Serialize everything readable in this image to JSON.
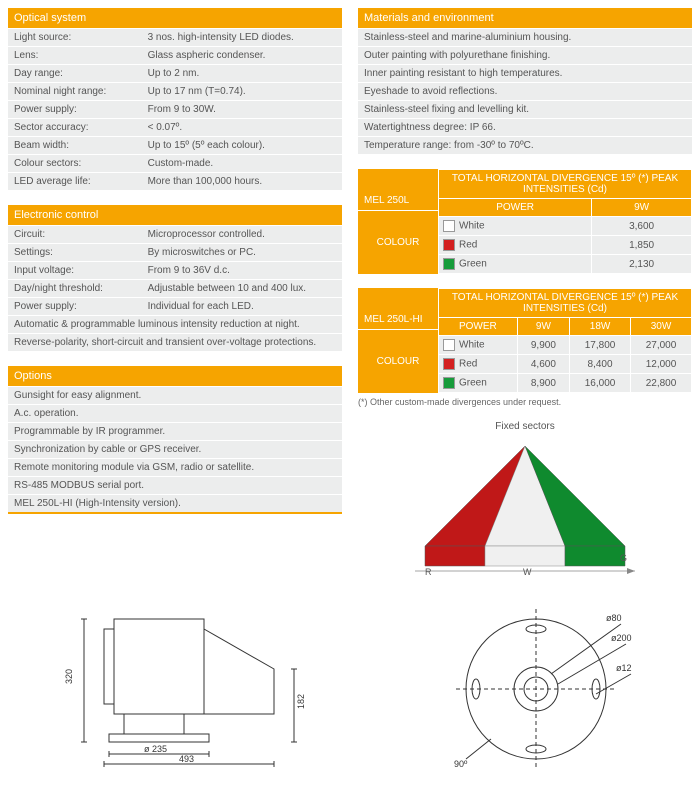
{
  "colors": {
    "accent": "#f6a400",
    "rowBg": "#eceded",
    "text": "#555",
    "white_swatch": "#ffffff",
    "red_swatch": "#d32020",
    "green_swatch": "#169b3a",
    "sector_red": "#c01818",
    "sector_white": "#f0f0f0",
    "sector_green": "#0f8a2e"
  },
  "left": {
    "optical": {
      "header": "Optical system",
      "rows": [
        {
          "label": "Light source:",
          "value": "3 nos. high-intensity LED diodes."
        },
        {
          "label": "Lens:",
          "value": "Glass aspheric condenser."
        },
        {
          "label": "Day range:",
          "value": "Up to 2 nm."
        },
        {
          "label": "Nominal night range:",
          "value": "Up to 17 nm (T=0.74)."
        },
        {
          "label": "Power supply:",
          "value": "From 9 to 30W."
        },
        {
          "label": "Sector accuracy:",
          "value": "< 0.07º."
        },
        {
          "label": "Beam width:",
          "value": "Up to 15º (5º each colour)."
        },
        {
          "label": "Colour sectors:",
          "value": "Custom-made."
        },
        {
          "label": "LED average life:",
          "value": "More than 100,000 hours."
        }
      ]
    },
    "electronic": {
      "header": "Electronic control",
      "rows": [
        {
          "label": "Circuit:",
          "value": "Microprocessor controlled."
        },
        {
          "label": "Settings:",
          "value": "By microswitches or PC."
        },
        {
          "label": "Input voltage:",
          "value": "From 9 to 36V d.c."
        },
        {
          "label": "Day/night threshold:",
          "value": "Adjustable between 10 and 400 lux."
        },
        {
          "label": "Power supply:",
          "value": "Individual for each LED."
        }
      ],
      "full": [
        "Automatic & programmable luminous intensity reduction at night.",
        "Reverse-polarity, short-circuit and transient over-voltage protections."
      ]
    },
    "options": {
      "header": "Options",
      "full": [
        "Gunsight for easy alignment.",
        "A.c. operation.",
        "Programmable by IR programmer.",
        "Synchronization by cable or GPS receiver.",
        "Remote monitoring module via GSM, radio or satellite.",
        "RS-485 MODBUS serial port.",
        "MEL 250L-HI (High-Intensity version)."
      ]
    }
  },
  "right": {
    "materials": {
      "header": "Materials and environment",
      "full": [
        "Stainless-steel and marine-aluminium housing.",
        "Outer painting with polyurethane finishing.",
        "Inner painting resistant to high temperatures.",
        "Eyeshade to avoid reflections.",
        "Stainless-steel fixing and levelling kit.",
        "Watertightness degree: IP 66.",
        "Temperature range: from -30º to 70ºC."
      ]
    },
    "table1": {
      "model": "MEL 250L",
      "title": "TOTAL HORIZONTAL DIVERGENCE 15º (*) PEAK INTENSITIES (Cd)",
      "colour_label": "COLOUR",
      "power_label": "POWER",
      "powers": [
        "9W"
      ],
      "rows": [
        {
          "name": "White",
          "swatch": "#ffffff",
          "vals": [
            "3,600"
          ]
        },
        {
          "name": "Red",
          "swatch": "#d32020",
          "vals": [
            "1,850"
          ]
        },
        {
          "name": "Green",
          "swatch": "#169b3a",
          "vals": [
            "2,130"
          ]
        }
      ]
    },
    "table2": {
      "model": "MEL 250L-HI",
      "title": "TOTAL HORIZONTAL DIVERGENCE 15º (*) PEAK INTENSITIES (Cd)",
      "colour_label": "COLOUR",
      "power_label": "POWER",
      "powers": [
        "9W",
        "18W",
        "30W"
      ],
      "rows": [
        {
          "name": "White",
          "swatch": "#ffffff",
          "vals": [
            "9,900",
            "17,800",
            "27,000"
          ]
        },
        {
          "name": "Red",
          "swatch": "#d32020",
          "vals": [
            "4,600",
            "8,400",
            "12,000"
          ]
        },
        {
          "name": "Green",
          "swatch": "#169b3a",
          "vals": [
            "8,900",
            "16,000",
            "22,800"
          ]
        }
      ]
    },
    "note": "(*) Other custom-made divergences under request.",
    "sectors_caption": "Fixed sectors",
    "sector_labels": {
      "r": "R",
      "w": "W",
      "g": "G"
    }
  },
  "drawing": {
    "dims": {
      "h1": "320",
      "h2": "182",
      "w1": "ø 235",
      "w2": "493",
      "d1": "ø80",
      "d2": "ø200",
      "d3": "ø12",
      "d4": "90º"
    }
  }
}
